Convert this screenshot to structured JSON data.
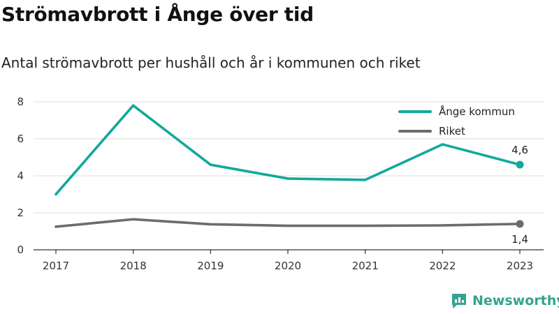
{
  "header": {
    "title": "Strömavbrott i Ånge över tid",
    "subtitle": "Antal strömavbrott per hushåll och år i kommunen och riket"
  },
  "brand": {
    "name": "Newsworthy",
    "icon": "newsworthy-logo-icon",
    "color": "#34a391"
  },
  "chart_data": {
    "type": "line",
    "x": [
      "2017",
      "2018",
      "2019",
      "2020",
      "2021",
      "2022",
      "2023"
    ],
    "yticks": [
      "0",
      "2",
      "4",
      "6",
      "8"
    ],
    "ylim": [
      0,
      8.6
    ],
    "grid": true,
    "legend_position": "top-right",
    "series": [
      {
        "name": "Ånge kommun",
        "color": "#13a89b",
        "values": [
          3.0,
          7.8,
          4.6,
          3.85,
          3.78,
          5.7,
          4.6
        ],
        "end_label": "4,6"
      },
      {
        "name": "Riket",
        "color": "#6b6b70",
        "values": [
          1.25,
          1.65,
          1.38,
          1.3,
          1.3,
          1.32,
          1.4
        ],
        "end_label": "1,4"
      }
    ]
  }
}
